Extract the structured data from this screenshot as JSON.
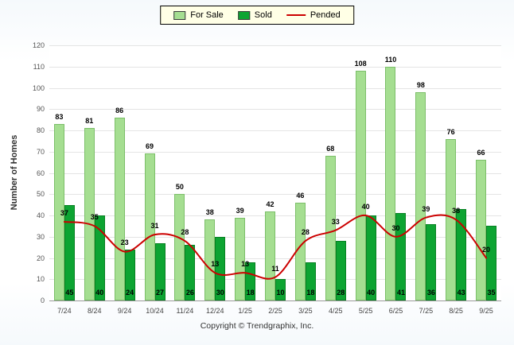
{
  "chart_data": {
    "type": "bar",
    "categories": [
      "7/24",
      "8/24",
      "9/24",
      "10/24",
      "11/24",
      "12/24",
      "1/25",
      "2/25",
      "3/25",
      "4/25",
      "5/25",
      "6/25",
      "7/25",
      "8/25",
      "9/25"
    ],
    "series": [
      {
        "name": "For Sale",
        "kind": "bar",
        "color": "#a5de91",
        "border": "#7cbf69",
        "values": [
          83,
          81,
          86,
          69,
          50,
          38,
          39,
          42,
          46,
          68,
          108,
          110,
          98,
          76,
          66
        ]
      },
      {
        "name": "Sold",
        "kind": "bar",
        "color": "#0da432",
        "border": "#088022",
        "values": [
          45,
          40,
          24,
          27,
          26,
          30,
          18,
          10,
          18,
          28,
          40,
          41,
          36,
          43,
          35
        ]
      },
      {
        "name": "Pended",
        "kind": "line",
        "color": "#cc0000",
        "values": [
          37,
          35,
          23,
          31,
          28,
          13,
          13,
          11,
          28,
          33,
          40,
          30,
          39,
          38,
          20
        ]
      }
    ],
    "ylabel": "Number of Homes",
    "ylim": [
      0,
      120
    ],
    "ytick_step": 10,
    "grid": true,
    "legend_position": "top"
  },
  "footer": {
    "copyright": "Copyright © Trendgraphix, Inc."
  }
}
